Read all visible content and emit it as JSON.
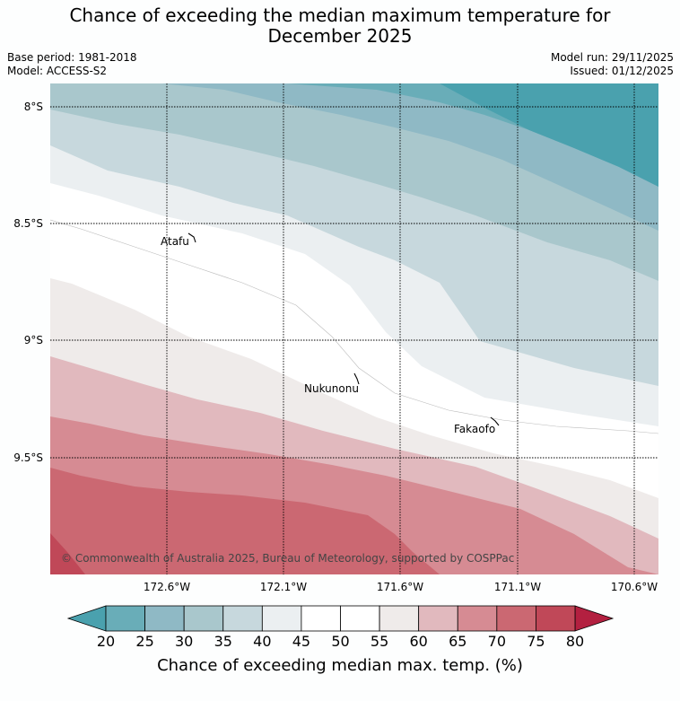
{
  "header": {
    "title_line1": "Chance of exceeding the median maximum temperature for",
    "title_line2": "December 2025",
    "base_period": "Base period: 1981-2018",
    "model": "Model: ACCESS-S2",
    "model_run": "Model run: 29/11/2025",
    "issued": "Issued: 01/12/2025"
  },
  "map": {
    "lat_labels": [
      "8°S",
      "8.5°S",
      "9°S",
      "9.5°S"
    ],
    "lon_labels": [
      "172.6°W",
      "172.1°W",
      "171.6°W",
      "171.1°W",
      "170.6°W"
    ],
    "places": [
      {
        "name": "Atafu"
      },
      {
        "name": "Nukunonu"
      },
      {
        "name": "Fakaofo"
      }
    ],
    "copyright": "© Commonwealth of Australia 2025, Bureau of Meteorology, supported by COSPPac"
  },
  "colorbar": {
    "ticks": [
      "20",
      "25",
      "30",
      "35",
      "40",
      "45",
      "50",
      "55",
      "60",
      "65",
      "70",
      "75",
      "80"
    ],
    "colors": [
      "#69adb8",
      "#8fb9c5",
      "#a9c7cc",
      "#c7d8dd",
      "#ebeff1",
      "#ffffff",
      "#ffffff",
      "#efebea",
      "#e1b9be",
      "#d68b93",
      "#cb6872",
      "#c04858"
    ],
    "low_extend_color": "#4aa1ae",
    "high_extend_color": "#b32040",
    "title": "Chance of exceeding median max. temp. (%)"
  }
}
